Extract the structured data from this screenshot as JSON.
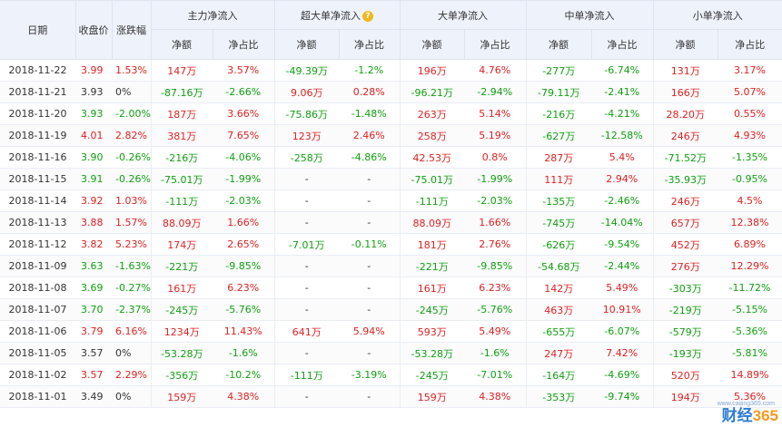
{
  "headers": {
    "date": "日期",
    "close": "收盘价",
    "change": "涨跌幅",
    "groups": [
      "主力净流入",
      "超大单净流入",
      "大单净流入",
      "中单净流入",
      "小单净流入"
    ],
    "sub_amount": "净额",
    "sub_ratio": "净占比",
    "help_glyph": "?"
  },
  "rows": [
    {
      "date": "2018-11-22",
      "close": "3.99",
      "change": "1.53%",
      "main": [
        "147万",
        "3.57%"
      ],
      "xl": [
        "-49.39万",
        "-1.2%"
      ],
      "lg": [
        "196万",
        "4.76%"
      ],
      "md": [
        "-277万",
        "-6.74%"
      ],
      "sm": [
        "131万",
        "3.17%"
      ]
    },
    {
      "date": "2018-11-21",
      "close": "3.93",
      "change": "0%",
      "main": [
        "-87.16万",
        "-2.66%"
      ],
      "xl": [
        "9.06万",
        "0.28%"
      ],
      "lg": [
        "-96.21万",
        "-2.94%"
      ],
      "md": [
        "-79.11万",
        "-2.41%"
      ],
      "sm": [
        "166万",
        "5.07%"
      ]
    },
    {
      "date": "2018-11-20",
      "close": "3.93",
      "change": "-2.00%",
      "main": [
        "187万",
        "3.66%"
      ],
      "xl": [
        "-75.86万",
        "-1.48%"
      ],
      "lg": [
        "263万",
        "5.14%"
      ],
      "md": [
        "-216万",
        "-4.21%"
      ],
      "sm": [
        "28.20万",
        "0.55%"
      ]
    },
    {
      "date": "2018-11-19",
      "close": "4.01",
      "change": "2.82%",
      "main": [
        "381万",
        "7.65%"
      ],
      "xl": [
        "123万",
        "2.46%"
      ],
      "lg": [
        "258万",
        "5.19%"
      ],
      "md": [
        "-627万",
        "-12.58%"
      ],
      "sm": [
        "246万",
        "4.93%"
      ]
    },
    {
      "date": "2018-11-16",
      "close": "3.90",
      "change": "-0.26%",
      "main": [
        "-216万",
        "-4.06%"
      ],
      "xl": [
        "-258万",
        "-4.86%"
      ],
      "lg": [
        "42.53万",
        "0.8%"
      ],
      "md": [
        "287万",
        "5.4%"
      ],
      "sm": [
        "-71.52万",
        "-1.35%"
      ]
    },
    {
      "date": "2018-11-15",
      "close": "3.91",
      "change": "-0.26%",
      "main": [
        "-75.01万",
        "-1.99%"
      ],
      "xl": [
        "-",
        "-"
      ],
      "lg": [
        "-75.01万",
        "-1.99%"
      ],
      "md": [
        "111万",
        "2.94%"
      ],
      "sm": [
        "-35.93万",
        "-0.95%"
      ]
    },
    {
      "date": "2018-11-14",
      "close": "3.92",
      "change": "1.03%",
      "main": [
        "-111万",
        "-2.03%"
      ],
      "xl": [
        "-",
        "-"
      ],
      "lg": [
        "-111万",
        "-2.03%"
      ],
      "md": [
        "-135万",
        "-2.46%"
      ],
      "sm": [
        "246万",
        "4.5%"
      ]
    },
    {
      "date": "2018-11-13",
      "close": "3.88",
      "change": "1.57%",
      "main": [
        "88.09万",
        "1.66%"
      ],
      "xl": [
        "-",
        "-"
      ],
      "lg": [
        "88.09万",
        "1.66%"
      ],
      "md": [
        "-745万",
        "-14.04%"
      ],
      "sm": [
        "657万",
        "12.38%"
      ]
    },
    {
      "date": "2018-11-12",
      "close": "3.82",
      "change": "5.23%",
      "main": [
        "174万",
        "2.65%"
      ],
      "xl": [
        "-7.01万",
        "-0.11%"
      ],
      "lg": [
        "181万",
        "2.76%"
      ],
      "md": [
        "-626万",
        "-9.54%"
      ],
      "sm": [
        "452万",
        "6.89%"
      ]
    },
    {
      "date": "2018-11-09",
      "close": "3.63",
      "change": "-1.63%",
      "main": [
        "-221万",
        "-9.85%"
      ],
      "xl": [
        "-",
        "-"
      ],
      "lg": [
        "-221万",
        "-9.85%"
      ],
      "md": [
        "-54.68万",
        "-2.44%"
      ],
      "sm": [
        "276万",
        "12.29%"
      ]
    },
    {
      "date": "2018-11-08",
      "close": "3.69",
      "change": "-0.27%",
      "main": [
        "161万",
        "6.23%"
      ],
      "xl": [
        "-",
        "-"
      ],
      "lg": [
        "161万",
        "6.23%"
      ],
      "md": [
        "142万",
        "5.49%"
      ],
      "sm": [
        "-303万",
        "-11.72%"
      ]
    },
    {
      "date": "2018-11-07",
      "close": "3.70",
      "change": "-2.37%",
      "main": [
        "-245万",
        "-5.76%"
      ],
      "xl": [
        "-",
        "-"
      ],
      "lg": [
        "-245万",
        "-5.76%"
      ],
      "md": [
        "463万",
        "10.91%"
      ],
      "sm": [
        "-219万",
        "-5.15%"
      ]
    },
    {
      "date": "2018-11-06",
      "close": "3.79",
      "change": "6.16%",
      "main": [
        "1234万",
        "11.43%"
      ],
      "xl": [
        "641万",
        "5.94%"
      ],
      "lg": [
        "593万",
        "5.49%"
      ],
      "md": [
        "-655万",
        "-6.07%"
      ],
      "sm": [
        "-579万",
        "-5.36%"
      ]
    },
    {
      "date": "2018-11-05",
      "close": "3.57",
      "change": "0%",
      "main": [
        "-53.28万",
        "-1.6%"
      ],
      "xl": [
        "-",
        "-"
      ],
      "lg": [
        "-53.28万",
        "-1.6%"
      ],
      "md": [
        "247万",
        "7.42%"
      ],
      "sm": [
        "-193万",
        "-5.81%"
      ]
    },
    {
      "date": "2018-11-02",
      "close": "3.57",
      "change": "2.29%",
      "main": [
        "-356万",
        "-10.2%"
      ],
      "xl": [
        "-111万",
        "-3.19%"
      ],
      "lg": [
        "-245万",
        "-7.01%"
      ],
      "md": [
        "-164万",
        "-4.69%"
      ],
      "sm": [
        "520万",
        "14.89%"
      ]
    },
    {
      "date": "2018-11-01",
      "close": "3.49",
      "change": "0%",
      "main": [
        "159万",
        "4.38%"
      ],
      "xl": [
        "-",
        "-"
      ],
      "lg": [
        "159万",
        "4.38%"
      ],
      "md": [
        "-353万",
        "-9.74%"
      ],
      "sm": [
        "194万",
        "5.36%"
      ]
    }
  ],
  "watermark": {
    "brand_text": "财经",
    "brand_num": "365",
    "url": "www.caijing365.com"
  },
  "colors": {
    "up": "#e02121",
    "down": "#10a010",
    "header_bg": "#eef3fb",
    "brand_blue": "#2b7bd6",
    "brand_orange": "#f39a1e"
  }
}
